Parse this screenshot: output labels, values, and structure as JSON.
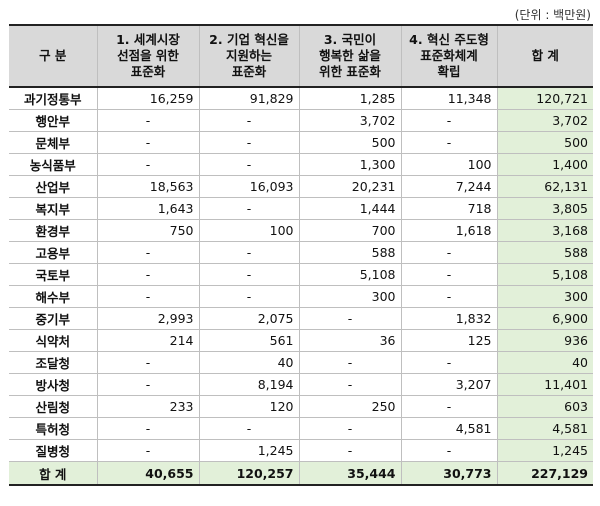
{
  "unit_label": "(단위 : 백만원)",
  "headers": [
    [
      "구 분"
    ],
    [
      "1. 세계시장",
      "선점을 위한",
      "표준화"
    ],
    [
      "2. 기업 혁신을",
      "지원하는",
      "표준화"
    ],
    [
      "3. 국민이",
      "행복한 삶을",
      "위한 표준화"
    ],
    [
      "4. 혁신 주도형",
      "표준화체계",
      "확립"
    ],
    [
      "합 계"
    ]
  ],
  "rows": [
    [
      "과기정통부",
      "16,259",
      "91,829",
      "1,285",
      "11,348",
      "120,721"
    ],
    [
      "행안부",
      "-",
      "-",
      "3,702",
      "-",
      "3,702"
    ],
    [
      "문체부",
      "-",
      "-",
      "500",
      "-",
      "500"
    ],
    [
      "농식품부",
      "-",
      "-",
      "1,300",
      "100",
      "1,400"
    ],
    [
      "산업부",
      "18,563",
      "16,093",
      "20,231",
      "7,244",
      "62,131"
    ],
    [
      "복지부",
      "1,643",
      "-",
      "1,444",
      "718",
      "3,805"
    ],
    [
      "환경부",
      "750",
      "100",
      "700",
      "1,618",
      "3,168"
    ],
    [
      "고용부",
      "-",
      "-",
      "588",
      "-",
      "588"
    ],
    [
      "국토부",
      "-",
      "-",
      "5,108",
      "-",
      "5,108"
    ],
    [
      "해수부",
      "-",
      "-",
      "300",
      "-",
      "300"
    ],
    [
      "중기부",
      "2,993",
      "2,075",
      "-",
      "1,832",
      "6,900"
    ],
    [
      "식약처",
      "214",
      "561",
      "36",
      "125",
      "936"
    ],
    [
      "조달청",
      "-",
      "40",
      "-",
      "-",
      "40"
    ],
    [
      "방사청",
      "-",
      "8,194",
      "-",
      "3,207",
      "11,401"
    ],
    [
      "산림청",
      "233",
      "120",
      "250",
      "-",
      "603"
    ],
    [
      "특허청",
      "-",
      "-",
      "-",
      "4,581",
      "4,581"
    ],
    [
      "질병청",
      "-",
      "1,245",
      "-",
      "-",
      "1,245"
    ]
  ],
  "total": [
    "합 계",
    "40,655",
    "120,257",
    "35,444",
    "30,773",
    "227,129"
  ]
}
